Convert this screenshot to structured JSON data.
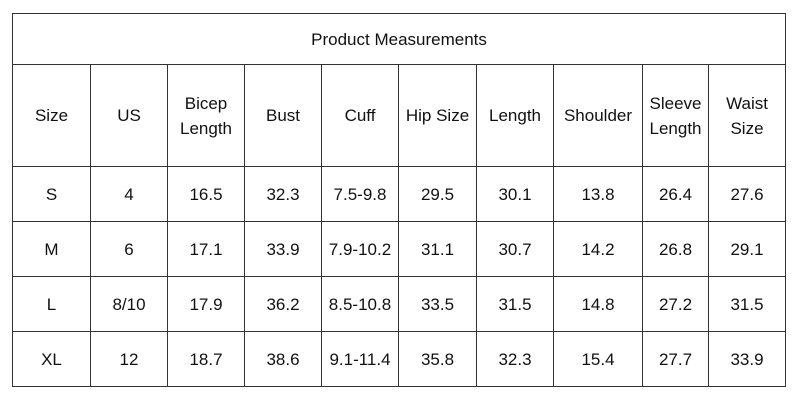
{
  "table": {
    "title": "Product Measurements",
    "header": [
      "Size",
      "US",
      "Bicep Length",
      "Bust",
      "Cuff",
      "Hip Size",
      "Length",
      "Shoulder",
      "Sleeve Length",
      "Waist Size"
    ],
    "rows": [
      [
        "S",
        "4",
        "16.5",
        "32.3",
        "7.5-9.8",
        "29.5",
        "30.1",
        "13.8",
        "26.4",
        "27.6"
      ],
      [
        "M",
        "6",
        "17.1",
        "33.9",
        "7.9-10.2",
        "31.1",
        "30.7",
        "14.2",
        "26.8",
        "29.1"
      ],
      [
        "L",
        "8/10",
        "17.9",
        "36.2",
        "8.5-10.8",
        "33.5",
        "31.5",
        "14.8",
        "27.2",
        "31.5"
      ],
      [
        "XL",
        "12",
        "18.7",
        "38.6",
        "9.1-11.4",
        "35.8",
        "32.3",
        "15.4",
        "27.7",
        "33.9"
      ]
    ]
  }
}
